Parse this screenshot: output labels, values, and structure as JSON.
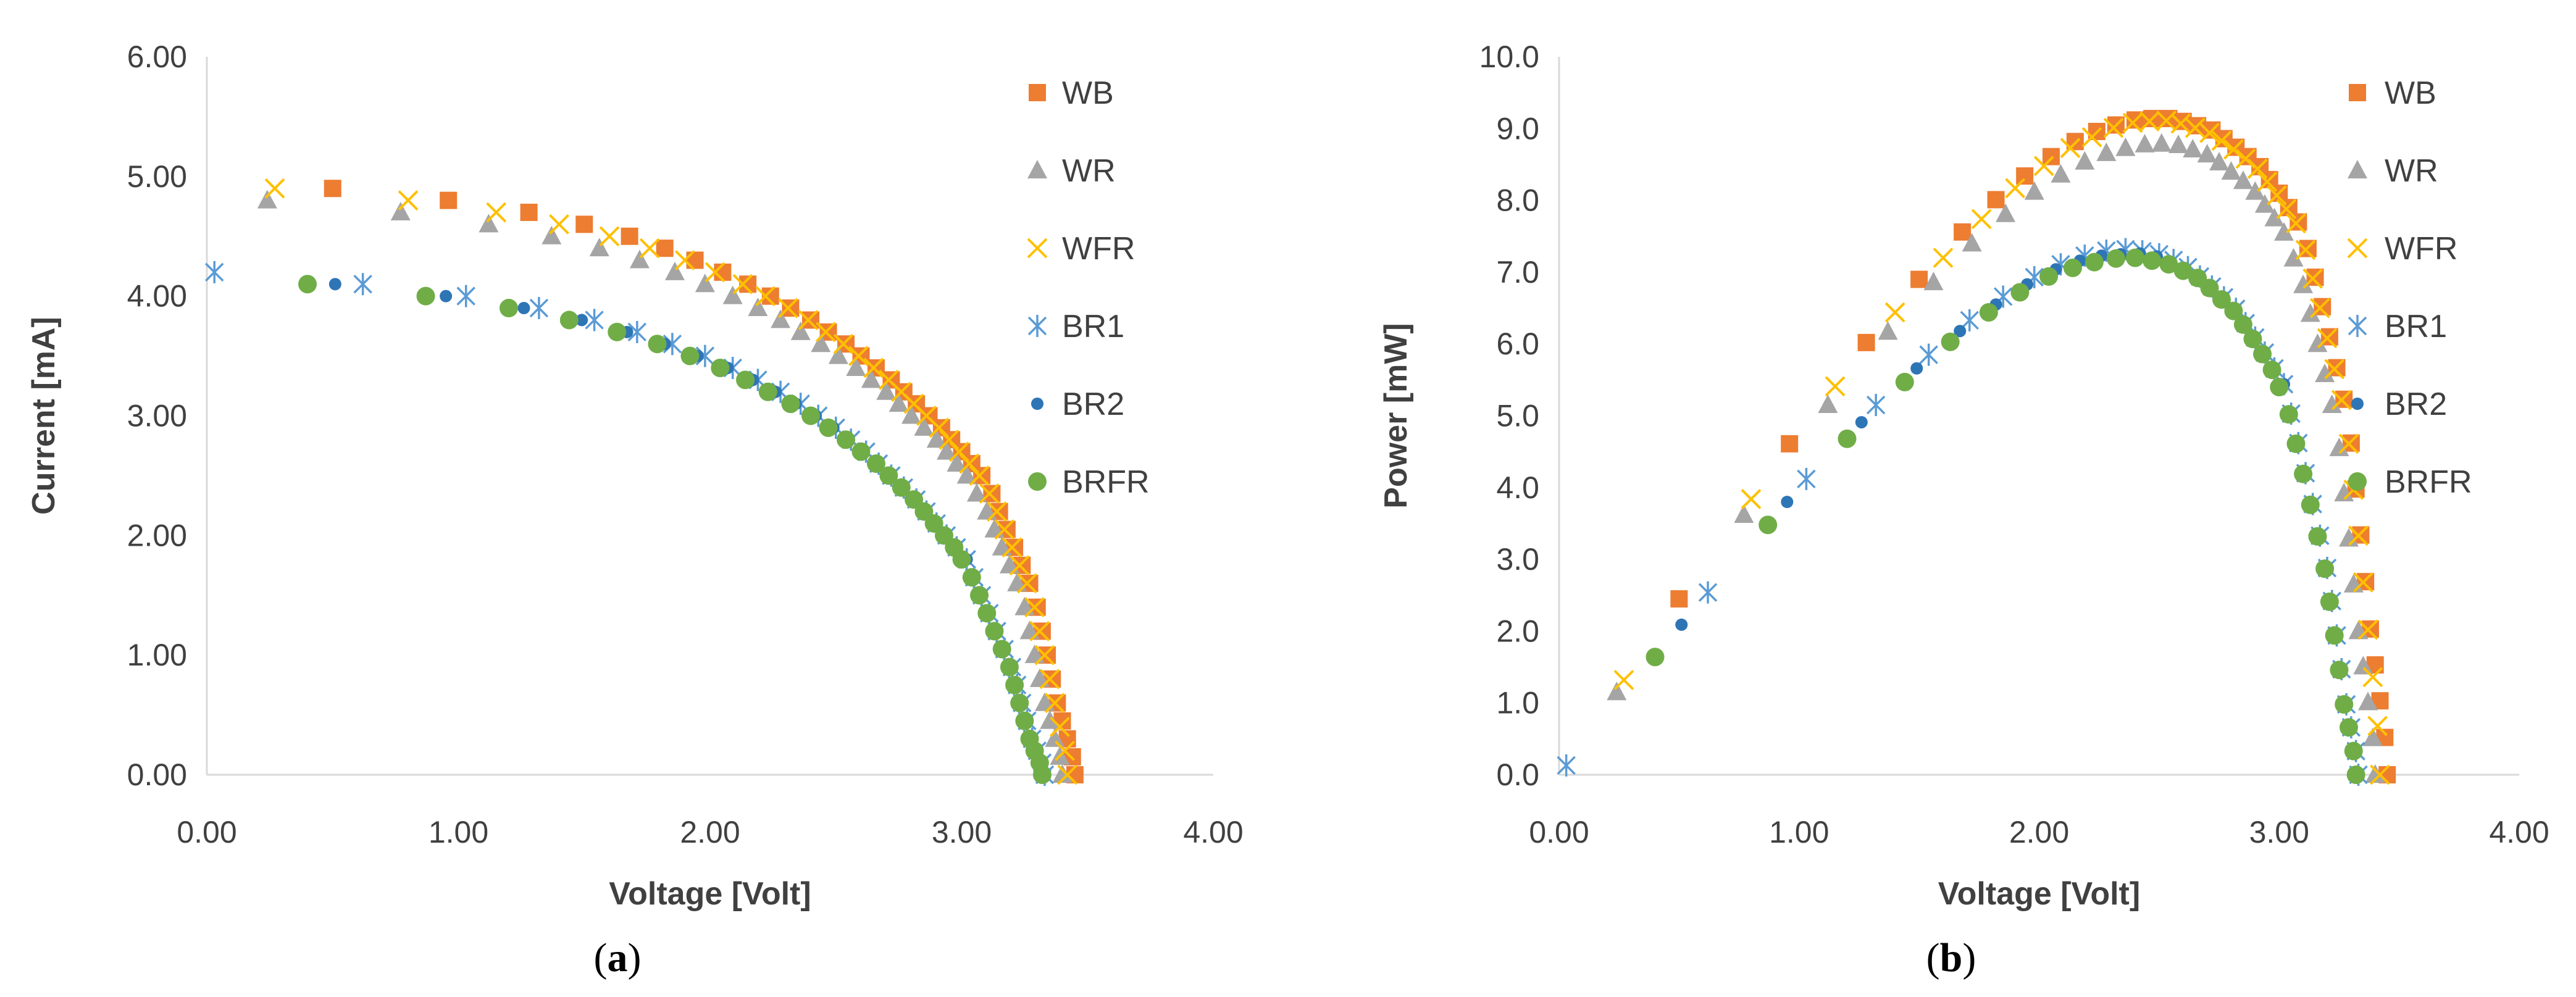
{
  "chart_data": [
    {
      "type": "scatter",
      "caption": "a",
      "xlabel": "Voltage [Volt]",
      "ylabel": "Current [mA]",
      "xlim": [
        0,
        4
      ],
      "ylim": [
        0,
        6
      ],
      "x_ticks": [
        "0.00",
        "1.00",
        "2.00",
        "3.00",
        "4.00"
      ],
      "y_ticks": [
        "0.00",
        "1.00",
        "2.00",
        "3.00",
        "4.00",
        "5.00",
        "6.00"
      ],
      "legend_position": "right",
      "series": [
        {
          "name": "WB",
          "marker": "square",
          "color": "#ED7D31",
          "x": [
            0.5,
            0.96,
            1.28,
            1.5,
            1.68,
            1.82,
            1.94,
            2.05,
            2.15,
            2.24,
            2.32,
            2.4,
            2.47,
            2.54,
            2.6,
            2.66,
            2.72,
            2.77,
            2.82,
            2.87,
            2.92,
            2.96,
            3.0,
            3.04,
            3.08,
            3.12,
            3.15,
            3.18,
            3.21,
            3.24,
            3.27,
            3.3,
            3.32,
            3.34,
            3.36,
            3.38,
            3.4,
            3.42,
            3.44,
            3.45
          ],
          "y": [
            4.9,
            4.8,
            4.7,
            4.6,
            4.5,
            4.4,
            4.3,
            4.2,
            4.1,
            4.0,
            3.9,
            3.8,
            3.7,
            3.6,
            3.5,
            3.4,
            3.3,
            3.2,
            3.1,
            3.0,
            2.9,
            2.8,
            2.7,
            2.6,
            2.5,
            2.35,
            2.2,
            2.05,
            1.9,
            1.75,
            1.6,
            1.4,
            1.2,
            1.0,
            0.8,
            0.6,
            0.45,
            0.3,
            0.15,
            0.0
          ]
        },
        {
          "name": "WR",
          "marker": "triangle",
          "color": "#A5A5A5",
          "x": [
            0.24,
            0.77,
            1.12,
            1.37,
            1.56,
            1.72,
            1.86,
            1.98,
            2.09,
            2.19,
            2.28,
            2.36,
            2.44,
            2.51,
            2.58,
            2.64,
            2.7,
            2.75,
            2.8,
            2.85,
            2.9,
            2.94,
            2.98,
            3.02,
            3.06,
            3.1,
            3.13,
            3.16,
            3.19,
            3.22,
            3.25,
            3.27,
            3.29,
            3.31,
            3.33,
            3.35,
            3.37,
            3.39,
            3.4
          ],
          "y": [
            4.8,
            4.7,
            4.6,
            4.5,
            4.4,
            4.3,
            4.2,
            4.1,
            4.0,
            3.9,
            3.8,
            3.7,
            3.6,
            3.5,
            3.4,
            3.3,
            3.2,
            3.1,
            3.0,
            2.9,
            2.8,
            2.7,
            2.6,
            2.5,
            2.35,
            2.2,
            2.05,
            1.9,
            1.75,
            1.6,
            1.4,
            1.2,
            1.0,
            0.8,
            0.6,
            0.45,
            0.3,
            0.15,
            0.0
          ]
        },
        {
          "name": "WFR",
          "marker": "x",
          "color": "#FFC000",
          "x": [
            0.27,
            0.8,
            1.15,
            1.4,
            1.6,
            1.76,
            1.9,
            2.02,
            2.13,
            2.22,
            2.31,
            2.39,
            2.46,
            2.53,
            2.59,
            2.65,
            2.71,
            2.76,
            2.81,
            2.86,
            2.91,
            2.95,
            2.99,
            3.03,
            3.07,
            3.11,
            3.14,
            3.17,
            3.2,
            3.23,
            3.26,
            3.29,
            3.31,
            3.33,
            3.35,
            3.37,
            3.39,
            3.41,
            3.42
          ],
          "y": [
            4.9,
            4.8,
            4.7,
            4.6,
            4.5,
            4.4,
            4.3,
            4.2,
            4.1,
            4.0,
            3.9,
            3.8,
            3.7,
            3.6,
            3.5,
            3.4,
            3.3,
            3.2,
            3.1,
            3.0,
            2.9,
            2.8,
            2.7,
            2.6,
            2.5,
            2.35,
            2.2,
            2.05,
            1.9,
            1.75,
            1.6,
            1.4,
            1.2,
            1.0,
            0.8,
            0.6,
            0.4,
            0.2,
            0.0
          ]
        },
        {
          "name": "BR1",
          "marker": "asterisk",
          "color": "#5B9BD5",
          "x": [
            0.03,
            0.62,
            1.03,
            1.32,
            1.54,
            1.71,
            1.85,
            1.98,
            2.09,
            2.19,
            2.28,
            2.36,
            2.43,
            2.5,
            2.56,
            2.62,
            2.67,
            2.72,
            2.77,
            2.82,
            2.86,
            2.9,
            2.94,
            2.98,
            3.02,
            3.05,
            3.08,
            3.11,
            3.14,
            3.17,
            3.2,
            3.22,
            3.24,
            3.26,
            3.28,
            3.3,
            3.32,
            3.33
          ],
          "y": [
            4.2,
            4.1,
            4.0,
            3.9,
            3.8,
            3.7,
            3.6,
            3.5,
            3.4,
            3.3,
            3.2,
            3.1,
            3.0,
            2.9,
            2.8,
            2.7,
            2.6,
            2.5,
            2.4,
            2.3,
            2.2,
            2.1,
            2.0,
            1.9,
            1.8,
            1.65,
            1.5,
            1.35,
            1.2,
            1.05,
            0.9,
            0.75,
            0.6,
            0.45,
            0.3,
            0.2,
            0.1,
            0.0
          ]
        },
        {
          "name": "BR2",
          "marker": "dot",
          "color": "#2E75B6",
          "x": [
            0.51,
            0.95,
            1.26,
            1.49,
            1.67,
            1.82,
            1.95,
            2.07,
            2.17,
            2.26,
            2.34,
            2.42,
            2.49,
            2.55,
            2.61,
            2.67,
            2.72,
            2.77,
            2.82,
            2.86,
            2.9,
            2.94,
            2.98,
            3.02,
            3.05,
            3.08,
            3.11,
            3.14,
            3.17,
            3.2,
            3.22,
            3.24,
            3.26,
            3.28,
            3.3,
            3.32,
            3.33
          ],
          "y": [
            4.1,
            4.0,
            3.9,
            3.8,
            3.7,
            3.6,
            3.5,
            3.4,
            3.3,
            3.2,
            3.1,
            3.0,
            2.9,
            2.8,
            2.7,
            2.6,
            2.5,
            2.4,
            2.3,
            2.2,
            2.1,
            2.0,
            1.9,
            1.8,
            1.65,
            1.5,
            1.35,
            1.2,
            1.05,
            0.9,
            0.75,
            0.6,
            0.45,
            0.3,
            0.2,
            0.1,
            0.0
          ]
        },
        {
          "name": "BRFR",
          "marker": "circle",
          "color": "#70AD47",
          "x": [
            0.4,
            0.87,
            1.2,
            1.44,
            1.63,
            1.79,
            1.92,
            2.04,
            2.14,
            2.23,
            2.32,
            2.4,
            2.47,
            2.54,
            2.6,
            2.66,
            2.71,
            2.76,
            2.81,
            2.85,
            2.89,
            2.93,
            2.97,
            3.0,
            3.04,
            3.07,
            3.1,
            3.13,
            3.16,
            3.19,
            3.21,
            3.23,
            3.25,
            3.27,
            3.29,
            3.31,
            3.32
          ],
          "y": [
            4.1,
            4.0,
            3.9,
            3.8,
            3.7,
            3.6,
            3.5,
            3.4,
            3.3,
            3.2,
            3.1,
            3.0,
            2.9,
            2.8,
            2.7,
            2.6,
            2.5,
            2.4,
            2.3,
            2.2,
            2.1,
            2.0,
            1.9,
            1.8,
            1.65,
            1.5,
            1.35,
            1.2,
            1.05,
            0.9,
            0.75,
            0.6,
            0.45,
            0.3,
            0.2,
            0.1,
            0.0
          ]
        }
      ]
    },
    {
      "type": "scatter",
      "caption": "b",
      "xlabel": "Voltage [Volt]",
      "ylabel": "Power [mW]",
      "xlim": [
        0,
        4
      ],
      "ylim": [
        0,
        10
      ],
      "x_ticks": [
        "0.00",
        "1.00",
        "2.00",
        "3.00",
        "4.00"
      ],
      "y_ticks": [
        "0.0",
        "1.0",
        "2.0",
        "3.0",
        "4.0",
        "5.0",
        "6.0",
        "7.0",
        "8.0",
        "9.0",
        "10.0"
      ],
      "legend_position": "right",
      "series": [
        {
          "name": "WB",
          "marker": "square",
          "color": "#ED7D31",
          "x": [
            0.5,
            0.96,
            1.28,
            1.5,
            1.68,
            1.82,
            1.94,
            2.05,
            2.15,
            2.24,
            2.32,
            2.4,
            2.47,
            2.54,
            2.6,
            2.66,
            2.72,
            2.77,
            2.82,
            2.87,
            2.92,
            2.96,
            3.0,
            3.04,
            3.08,
            3.12,
            3.15,
            3.18,
            3.21,
            3.24,
            3.27,
            3.3,
            3.32,
            3.34,
            3.36,
            3.38,
            3.4,
            3.42,
            3.44,
            3.45
          ],
          "y": [
            2.45,
            4.61,
            6.02,
            6.9,
            7.56,
            8.01,
            8.34,
            8.61,
            8.82,
            8.96,
            9.05,
            9.12,
            9.14,
            9.14,
            9.1,
            9.04,
            8.98,
            8.86,
            8.74,
            8.61,
            8.47,
            8.29,
            8.1,
            7.9,
            7.7,
            7.33,
            6.93,
            6.52,
            6.1,
            5.67,
            5.23,
            4.62,
            3.98,
            3.34,
            2.69,
            2.03,
            1.53,
            1.03,
            0.52,
            0.0
          ]
        },
        {
          "name": "WR",
          "marker": "triangle",
          "color": "#A5A5A5",
          "x": [
            0.24,
            0.77,
            1.12,
            1.37,
            1.56,
            1.72,
            1.86,
            1.98,
            2.09,
            2.19,
            2.28,
            2.36,
            2.44,
            2.51,
            2.58,
            2.64,
            2.7,
            2.75,
            2.8,
            2.85,
            2.9,
            2.94,
            2.98,
            3.02,
            3.06,
            3.1,
            3.13,
            3.16,
            3.19,
            3.22,
            3.25,
            3.27,
            3.29,
            3.31,
            3.33,
            3.35,
            3.37,
            3.39,
            3.4
          ],
          "y": [
            1.15,
            3.62,
            5.15,
            6.17,
            6.86,
            7.4,
            7.81,
            8.12,
            8.36,
            8.54,
            8.66,
            8.73,
            8.78,
            8.79,
            8.77,
            8.71,
            8.64,
            8.53,
            8.4,
            8.27,
            8.12,
            7.94,
            7.75,
            7.55,
            7.19,
            6.82,
            6.42,
            6.0,
            5.58,
            5.15,
            4.55,
            3.92,
            3.29,
            2.65,
            2.0,
            1.51,
            1.01,
            0.51,
            0.0
          ]
        },
        {
          "name": "WFR",
          "marker": "x",
          "color": "#FFC000",
          "x": [
            0.27,
            0.8,
            1.15,
            1.4,
            1.6,
            1.76,
            1.9,
            2.02,
            2.13,
            2.22,
            2.31,
            2.39,
            2.46,
            2.53,
            2.59,
            2.65,
            2.71,
            2.76,
            2.81,
            2.86,
            2.91,
            2.95,
            2.99,
            3.03,
            3.07,
            3.11,
            3.14,
            3.17,
            3.2,
            3.23,
            3.26,
            3.29,
            3.31,
            3.33,
            3.35,
            3.37,
            3.39,
            3.41,
            3.42
          ],
          "y": [
            1.32,
            3.84,
            5.41,
            6.44,
            7.2,
            7.74,
            8.17,
            8.48,
            8.73,
            8.88,
            9.01,
            9.08,
            9.1,
            9.11,
            9.07,
            9.01,
            8.94,
            8.83,
            8.71,
            8.58,
            8.44,
            8.26,
            8.07,
            7.88,
            7.68,
            7.31,
            6.91,
            6.5,
            6.08,
            5.65,
            5.22,
            4.61,
            3.97,
            3.33,
            2.68,
            2.02,
            1.36,
            0.68,
            0.0
          ]
        },
        {
          "name": "BR1",
          "marker": "asterisk",
          "color": "#5B9BD5",
          "x": [
            0.03,
            0.62,
            1.03,
            1.32,
            1.54,
            1.71,
            1.85,
            1.98,
            2.09,
            2.19,
            2.28,
            2.36,
            2.43,
            2.5,
            2.56,
            2.62,
            2.67,
            2.72,
            2.77,
            2.82,
            2.86,
            2.9,
            2.94,
            2.98,
            3.02,
            3.05,
            3.08,
            3.11,
            3.14,
            3.17,
            3.2,
            3.22,
            3.24,
            3.26,
            3.28,
            3.3,
            3.32,
            3.33
          ],
          "y": [
            0.13,
            2.54,
            4.12,
            5.15,
            5.85,
            6.33,
            6.66,
            6.93,
            7.11,
            7.23,
            7.3,
            7.32,
            7.29,
            7.25,
            7.17,
            7.07,
            6.94,
            6.8,
            6.65,
            6.49,
            6.29,
            6.09,
            5.88,
            5.66,
            5.44,
            5.03,
            4.62,
            4.2,
            3.77,
            3.33,
            2.88,
            2.42,
            1.94,
            1.47,
            0.98,
            0.66,
            0.33,
            0.0
          ]
        },
        {
          "name": "BR2",
          "marker": "dot",
          "color": "#2E75B6",
          "x": [
            0.51,
            0.95,
            1.26,
            1.49,
            1.67,
            1.82,
            1.95,
            2.07,
            2.17,
            2.26,
            2.34,
            2.42,
            2.49,
            2.55,
            2.61,
            2.67,
            2.72,
            2.77,
            2.82,
            2.86,
            2.9,
            2.94,
            2.98,
            3.02,
            3.05,
            3.08,
            3.11,
            3.14,
            3.17,
            3.2,
            3.22,
            3.24,
            3.26,
            3.28,
            3.3,
            3.32,
            3.33
          ],
          "y": [
            2.09,
            3.8,
            4.91,
            5.66,
            6.18,
            6.55,
            6.83,
            7.04,
            7.16,
            7.23,
            7.25,
            7.26,
            7.22,
            7.14,
            7.05,
            6.94,
            6.8,
            6.65,
            6.49,
            6.29,
            6.09,
            5.88,
            5.66,
            5.44,
            5.03,
            4.62,
            4.2,
            3.77,
            3.33,
            2.88,
            2.42,
            1.94,
            1.47,
            0.98,
            0.66,
            0.33,
            0.0
          ]
        },
        {
          "name": "BRFR",
          "marker": "circle",
          "color": "#70AD47",
          "x": [
            0.4,
            0.87,
            1.2,
            1.44,
            1.63,
            1.79,
            1.92,
            2.04,
            2.14,
            2.23,
            2.32,
            2.4,
            2.47,
            2.54,
            2.6,
            2.66,
            2.71,
            2.76,
            2.81,
            2.85,
            2.89,
            2.93,
            2.97,
            3.0,
            3.04,
            3.07,
            3.1,
            3.13,
            3.16,
            3.19,
            3.21,
            3.23,
            3.25,
            3.27,
            3.29,
            3.31,
            3.32
          ],
          "y": [
            1.64,
            3.48,
            4.68,
            5.47,
            6.03,
            6.44,
            6.72,
            6.94,
            7.06,
            7.14,
            7.19,
            7.2,
            7.16,
            7.11,
            7.02,
            6.92,
            6.78,
            6.62,
            6.46,
            6.27,
            6.07,
            5.86,
            5.64,
            5.4,
            5.02,
            4.61,
            4.19,
            3.76,
            3.32,
            2.87,
            2.41,
            1.94,
            1.46,
            0.98,
            0.66,
            0.33,
            0.0
          ]
        }
      ]
    }
  ]
}
